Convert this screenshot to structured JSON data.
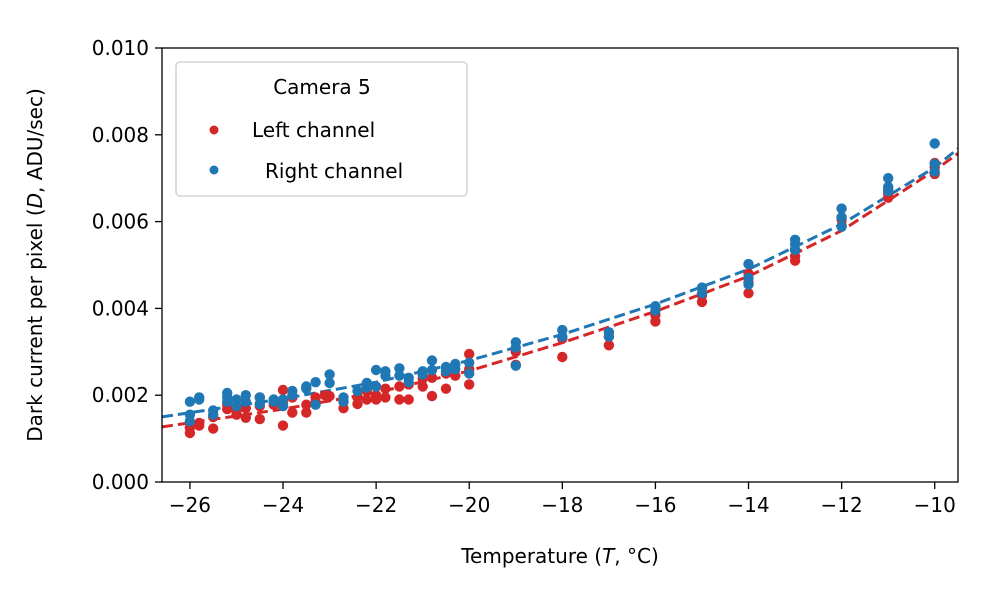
{
  "chart_data": {
    "type": "scatter",
    "xlabel": {
      "before": "Temperature (",
      "var": "T",
      "after": ", °C)"
    },
    "ylabel": {
      "before": "Dark current per pixel (",
      "var": "D",
      "after": ", ADU/sec)"
    },
    "xlim": [
      -26.6,
      -9.5
    ],
    "ylim": [
      0,
      0.01
    ],
    "xticks": [
      -26,
      -24,
      -22,
      -20,
      -18,
      -16,
      -14,
      -12,
      -10
    ],
    "xtick_labels": [
      "−26",
      "−24",
      "−22",
      "−20",
      "−18",
      "−16",
      "−14",
      "−12",
      "−10"
    ],
    "yticks": [
      0,
      0.002,
      0.004,
      0.006,
      0.008,
      0.01
    ],
    "ytick_labels": [
      "0.000",
      "0.002",
      "0.004",
      "0.006",
      "0.008",
      "0.010"
    ],
    "grid": false,
    "legend": {
      "title": "Camera 5",
      "placement": "top-left"
    },
    "series": [
      {
        "name": "Left channel",
        "color": "#d62728",
        "points": [
          [
            -26,
            0.00113
          ],
          [
            -26,
            0.00125
          ],
          [
            -25.8,
            0.0013
          ],
          [
            -25.8,
            0.00136
          ],
          [
            -25.5,
            0.00123
          ],
          [
            -25.5,
            0.0015
          ],
          [
            -25.2,
            0.00168
          ],
          [
            -25.2,
            0.00178
          ],
          [
            -25,
            0.00155
          ],
          [
            -25,
            0.00162
          ],
          [
            -24.8,
            0.00148
          ],
          [
            -24.8,
            0.0017
          ],
          [
            -24.5,
            0.00145
          ],
          [
            -24.5,
            0.00175
          ],
          [
            -24.5,
            0.00195
          ],
          [
            -24.2,
            0.00185
          ],
          [
            -24.2,
            0.00178
          ],
          [
            -24,
            0.0013
          ],
          [
            -24,
            0.00212
          ],
          [
            -24,
            0.00185
          ],
          [
            -23.8,
            0.0016
          ],
          [
            -23.8,
            0.00195
          ],
          [
            -23.5,
            0.0016
          ],
          [
            -23.5,
            0.00178
          ],
          [
            -23.3,
            0.00185
          ],
          [
            -23.3,
            0.00195
          ],
          [
            -23.1,
            0.002
          ],
          [
            -23,
            0.00198
          ],
          [
            -22.7,
            0.0017
          ],
          [
            -22.7,
            0.00185
          ],
          [
            -22.4,
            0.0018
          ],
          [
            -22.4,
            0.00195
          ],
          [
            -22.2,
            0.0019
          ],
          [
            -22.2,
            0.0021
          ],
          [
            -22,
            0.0019
          ],
          [
            -22,
            0.002
          ],
          [
            -21.8,
            0.00195
          ],
          [
            -21.8,
            0.00215
          ],
          [
            -21.5,
            0.0019
          ],
          [
            -21.5,
            0.0022
          ],
          [
            -21.3,
            0.0019
          ],
          [
            -21.3,
            0.00225
          ],
          [
            -21,
            0.0022
          ],
          [
            -21,
            0.00238
          ],
          [
            -20.8,
            0.00198
          ],
          [
            -20.8,
            0.0024
          ],
          [
            -20.5,
            0.00215
          ],
          [
            -20.5,
            0.0025
          ],
          [
            -20.3,
            0.00245
          ],
          [
            -20,
            0.00225
          ],
          [
            -20,
            0.0026
          ],
          [
            -20,
            0.00295
          ],
          [
            -19,
            0.0027
          ],
          [
            -19,
            0.003
          ],
          [
            -18,
            0.00288
          ],
          [
            -18,
            0.0033
          ],
          [
            -17,
            0.00315
          ],
          [
            -17,
            0.00335
          ],
          [
            -16,
            0.0037
          ],
          [
            -16,
            0.00385
          ],
          [
            -15,
            0.00415
          ],
          [
            -15,
            0.0043
          ],
          [
            -14,
            0.00435
          ],
          [
            -14,
            0.0046
          ],
          [
            -14,
            0.0048
          ],
          [
            -13,
            0.0051
          ],
          [
            -13,
            0.0052
          ],
          [
            -13,
            0.00535
          ],
          [
            -12,
            0.0059
          ],
          [
            -12,
            0.00605
          ],
          [
            -11,
            0.00655
          ],
          [
            -11,
            0.00665
          ],
          [
            -11,
            0.00675
          ],
          [
            -10,
            0.0071
          ],
          [
            -10,
            0.00725
          ],
          [
            -10,
            0.00735
          ]
        ],
        "fit": [
          [
            -26.6,
            0.00127
          ],
          [
            -24,
            0.00168
          ],
          [
            -22,
            0.00206
          ],
          [
            -20,
            0.00256
          ],
          [
            -18,
            0.00321
          ],
          [
            -16,
            0.00393
          ],
          [
            -14,
            0.00474
          ],
          [
            -12,
            0.00579
          ],
          [
            -10,
            0.00718
          ],
          [
            -9.5,
            0.00757
          ]
        ]
      },
      {
        "name": "Right channel",
        "color": "#1f77b4",
        "points": [
          [
            -26,
            0.00185
          ],
          [
            -26,
            0.00155
          ],
          [
            -26,
            0.0014
          ],
          [
            -25.8,
            0.00195
          ],
          [
            -25.8,
            0.0019
          ],
          [
            -25.5,
            0.00165
          ],
          [
            -25.5,
            0.00155
          ],
          [
            -25.2,
            0.00205
          ],
          [
            -25.2,
            0.00195
          ],
          [
            -25.2,
            0.00185
          ],
          [
            -25,
            0.0019
          ],
          [
            -25,
            0.00175
          ],
          [
            -24.8,
            0.002
          ],
          [
            -24.8,
            0.00185
          ],
          [
            -24.5,
            0.00195
          ],
          [
            -24.5,
            0.0018
          ],
          [
            -24.2,
            0.0019
          ],
          [
            -24.2,
            0.00185
          ],
          [
            -24,
            0.0019
          ],
          [
            -24,
            0.00175
          ],
          [
            -23.8,
            0.0021
          ],
          [
            -23.8,
            0.002
          ],
          [
            -23.5,
            0.0022
          ],
          [
            -23.5,
            0.00215
          ],
          [
            -23.3,
            0.0023
          ],
          [
            -23.3,
            0.00178
          ],
          [
            -23,
            0.00248
          ],
          [
            -23,
            0.00228
          ],
          [
            -22.7,
            0.00195
          ],
          [
            -22.7,
            0.00185
          ],
          [
            -22.4,
            0.0021
          ],
          [
            -22.2,
            0.00228
          ],
          [
            -22.2,
            0.00218
          ],
          [
            -22,
            0.00258
          ],
          [
            -22,
            0.0022
          ],
          [
            -21.8,
            0.00255
          ],
          [
            -21.8,
            0.00245
          ],
          [
            -21.5,
            0.00262
          ],
          [
            -21.5,
            0.00245
          ],
          [
            -21.3,
            0.0024
          ],
          [
            -21.3,
            0.0023
          ],
          [
            -21,
            0.00255
          ],
          [
            -21,
            0.00248
          ],
          [
            -20.8,
            0.0028
          ],
          [
            -20.8,
            0.00258
          ],
          [
            -20.5,
            0.00265
          ],
          [
            -20.5,
            0.00255
          ],
          [
            -20.3,
            0.00272
          ],
          [
            -20.3,
            0.0026
          ],
          [
            -20,
            0.00275
          ],
          [
            -20,
            0.0025
          ],
          [
            -19,
            0.00322
          ],
          [
            -19,
            0.0031
          ],
          [
            -19,
            0.00268
          ],
          [
            -18,
            0.0035
          ],
          [
            -18,
            0.00335
          ],
          [
            -17,
            0.00345
          ],
          [
            -17,
            0.00335
          ],
          [
            -16,
            0.00405
          ],
          [
            -16,
            0.00395
          ],
          [
            -15,
            0.00448
          ],
          [
            -15,
            0.00435
          ],
          [
            -14,
            0.00502
          ],
          [
            -14,
            0.0047
          ],
          [
            -14,
            0.00455
          ],
          [
            -13,
            0.00558
          ],
          [
            -13,
            0.00548
          ],
          [
            -13,
            0.00535
          ],
          [
            -12,
            0.0063
          ],
          [
            -12,
            0.0061
          ],
          [
            -12,
            0.00588
          ],
          [
            -11,
            0.007
          ],
          [
            -11,
            0.0068
          ],
          [
            -11,
            0.0067
          ],
          [
            -10,
            0.0078
          ],
          [
            -10,
            0.00733
          ],
          [
            -10,
            0.00715
          ]
        ],
        "fit": [
          [
            -26.6,
            0.0015
          ],
          [
            -24,
            0.00192
          ],
          [
            -22,
            0.0023
          ],
          [
            -20,
            0.0028
          ],
          [
            -18,
            0.0034
          ],
          [
            -16,
            0.0041
          ],
          [
            -14,
            0.0049
          ],
          [
            -12,
            0.00594
          ],
          [
            -10,
            0.00725
          ],
          [
            -9.5,
            0.00768
          ]
        ]
      }
    ]
  }
}
